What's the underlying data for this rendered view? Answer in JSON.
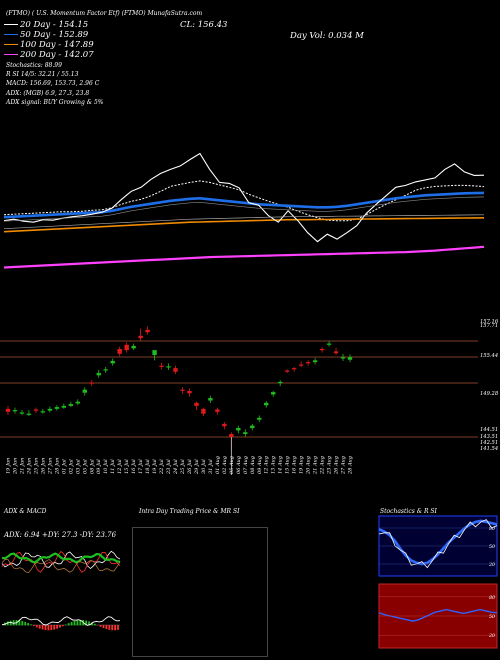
{
  "header": {
    "title_line": "MunafaSutra.com",
    "line_left": "(FTMO) ( U.S. Momentum Factor Etf) (FTMO) MunafaSutra.com",
    "ma_labels": [
      "20  Day - 154.15",
      "50  Day - 152.89",
      "100  Day - 147.89",
      "200  Day - 142.07"
    ],
    "cl_text": "CL: 156.43",
    "day_vol_text": "Day Vol: 0.034  M",
    "stochastic": "Stochastics: 88.99",
    "si": "R               SI 14/5: 32.21 / 55.13",
    "macd": "MACD: 156.69, 153.73, 2.96  C",
    "adx": "ADX:                                                (MGB) 6.9, 27.3, 23.8",
    "adx_signal": "ADX  signal:                                         BUY Growing  & 5%"
  },
  "colors": {
    "ma20": "#ffffff",
    "ma50": "#1e6ee8",
    "ma100": "#f08a00",
    "ma200": "#ff40ff",
    "bull": "#1fbe1f",
    "bear": "#e01a1a",
    "axis": "#aa5533"
  },
  "candles": {
    "price_labels": [
      "157.16",
      "157.71",
      "155.44",
      "149.28",
      "144.51",
      "143.51",
      "142.51",
      "141.54"
    ],
    "dates": [
      "19 Jun",
      "20 Jun",
      "21 Jun",
      "24 Jun",
      "25 Jun",
      "26 Jun",
      "27 Jun",
      "28 Jun",
      "01 Jul",
      "02 Jul",
      "03 Jul",
      "05 Jul",
      "08 Jul",
      "09 Jul",
      "10 Jul",
      "11 Jul",
      "12 Jul",
      "15 Jul",
      "16 Jul",
      "17 Jul",
      "18 Jul",
      "19 Jul",
      "22 Jul",
      "23 Jul",
      "24 Jul",
      "25 Jul",
      "26 Jul",
      "29 Jul",
      "30 Jul",
      "31 Jul",
      "01 Aug",
      "02 Aug",
      "05 Aug",
      "06 Aug",
      "07 Aug",
      "08 Aug",
      "09 Aug",
      "12 Aug",
      "13 Aug",
      "14 Aug",
      "15 Aug",
      "16 Aug",
      "19 Aug",
      "20 Aug",
      "21 Aug",
      "22 Aug",
      "23 Aug",
      "26 Aug",
      "27 Aug",
      "28 Aug"
    ]
  },
  "panels": {
    "adx_title": "ADX  & MACD",
    "adx_values": "ADX: 6.94  +DY: 27.3  -DY: 23.76",
    "intraday_title": "Intra Day Trading Price  & MR                   SI",
    "stoch_title": "Stochastics & R                   SI",
    "stoch_ticks": [
      "80",
      "50",
      "20"
    ],
    "rsi_ticks": [
      "80",
      "50",
      "20"
    ]
  },
  "chart_data": [
    {
      "type": "line",
      "title": "MunafaSutra.com",
      "series": [
        {
          "name": "20 Day",
          "values": [
            148.5,
            148.6,
            148.7,
            148.8,
            148.9,
            149.0,
            149.1,
            149.1,
            149.2,
            149.4,
            149.5,
            149.9,
            150.6,
            151.2,
            151.6,
            152.3,
            153.2,
            154.2,
            154.6,
            155.0,
            155.3,
            155.0,
            154.5,
            154.0,
            153.5,
            152.6,
            151.9,
            151.2,
            150.6,
            150.0,
            149.2,
            148.5,
            147.9,
            147.4,
            147.3,
            147.3,
            147.6,
            148.5,
            149.6,
            150.6,
            151.5,
            152.4,
            153.4,
            153.9,
            154.2,
            154.3,
            154.4,
            154.4,
            154.3,
            154.15
          ]
        },
        {
          "name": "50 Day",
          "values": [
            148.0,
            148.1,
            148.2,
            148.3,
            148.4,
            148.5,
            148.6,
            148.7,
            148.8,
            148.9,
            149.0,
            149.3,
            149.7,
            150.1,
            150.4,
            150.7,
            151.0,
            151.3,
            151.5,
            151.7,
            151.8,
            151.6,
            151.4,
            151.2,
            151.0,
            150.8,
            150.6,
            150.5,
            150.4,
            150.3,
            150.2,
            150.1,
            150.0,
            150.0,
            150.1,
            150.3,
            150.6,
            150.9,
            151.2,
            151.5,
            151.8,
            152.0,
            152.2,
            152.4,
            152.5,
            152.6,
            152.7,
            152.8,
            152.85,
            152.89
          ]
        },
        {
          "name": "100 Day",
          "values": [
            145.1,
            145.2,
            145.3,
            145.4,
            145.5,
            145.6,
            145.7,
            145.8,
            145.9,
            146.0,
            146.1,
            146.2,
            146.3,
            146.4,
            146.5,
            146.6,
            146.7,
            146.8,
            146.9,
            147.0,
            147.05,
            147.1,
            147.15,
            147.2,
            147.25,
            147.3,
            147.35,
            147.4,
            147.45,
            147.5,
            147.5,
            147.5,
            147.55,
            147.55,
            147.6,
            147.6,
            147.62,
            147.64,
            147.66,
            147.68,
            147.7,
            147.72,
            147.74,
            147.76,
            147.78,
            147.8,
            147.82,
            147.84,
            147.86,
            147.89
          ]
        },
        {
          "name": "200 Day",
          "values": [
            137.9,
            138.0,
            138.1,
            138.2,
            138.3,
            138.4,
            138.5,
            138.6,
            138.7,
            138.8,
            138.9,
            139.0,
            139.1,
            139.2,
            139.3,
            139.4,
            139.5,
            139.6,
            139.7,
            139.8,
            139.9,
            140.0,
            140.05,
            140.1,
            140.15,
            140.2,
            140.25,
            140.3,
            140.35,
            140.4,
            140.45,
            140.5,
            140.55,
            140.6,
            140.65,
            140.7,
            140.75,
            140.8,
            140.85,
            140.9,
            140.95,
            141.0,
            141.1,
            141.2,
            141.3,
            141.45,
            141.6,
            141.75,
            141.9,
            142.07
          ]
        },
        {
          "name": "CL",
          "values": [
            147.3,
            147.6,
            147.2,
            147.0,
            147.5,
            147.4,
            147.8,
            148.1,
            148.3,
            148.6,
            149.0,
            149.8,
            151.6,
            153.2,
            154.0,
            155.6,
            156.8,
            157.6,
            158.3,
            159.6,
            160.8,
            157.6,
            155.0,
            154.8,
            153.9,
            150.9,
            150.4,
            148.3,
            147.0,
            149.3,
            147.3,
            144.9,
            143.1,
            144.6,
            143.6,
            144.9,
            146.3,
            148.8,
            150.6,
            152.3,
            154.0,
            154.4,
            155.1,
            155.5,
            155.9,
            157.6,
            158.7,
            157.1,
            156.4,
            156.43
          ]
        }
      ]
    },
    {
      "type": "candlestick",
      "title": "MunafaSutra.com",
      "x": [
        "19 Jun",
        "20 Jun",
        "21 Jun",
        "24 Jun",
        "25 Jun",
        "26 Jun",
        "27 Jun",
        "28 Jun",
        "01 Jul",
        "02 Jul",
        "03 Jul",
        "05 Jul",
        "08 Jul",
        "09 Jul",
        "10 Jul",
        "11 Jul",
        "12 Jul",
        "15 Jul",
        "16 Jul",
        "17 Jul",
        "18 Jul",
        "19 Jul",
        "22 Jul",
        "23 Jul",
        "24 Jul",
        "25 Jul",
        "26 Jul",
        "29 Jul",
        "30 Jul",
        "31 Jul",
        "01 Aug",
        "02 Aug",
        "05 Aug",
        "06 Aug",
        "07 Aug",
        "08 Aug",
        "09 Aug",
        "12 Aug",
        "13 Aug",
        "14 Aug",
        "15 Aug",
        "16 Aug",
        "19 Aug",
        "20 Aug",
        "21 Aug",
        "22 Aug",
        "23 Aug",
        "26 Aug",
        "27 Aug",
        "28 Aug"
      ],
      "open": [
        147.8,
        147.4,
        147.2,
        147.0,
        147.7,
        147.2,
        147.5,
        147.8,
        148.0,
        148.3,
        148.7,
        150.5,
        152.2,
        153.4,
        154.2,
        155.4,
        157.8,
        158.5,
        157.9,
        160.0,
        161.0,
        156.8,
        155.0,
        154.8,
        154.6,
        151.0,
        150.8,
        148.8,
        147.8,
        149.2,
        147.7,
        145.3,
        143.6,
        144.2,
        143.6,
        144.6,
        146.0,
        148.4,
        150.2,
        152.1,
        154.2,
        154.6,
        155.2,
        155.6,
        155.6,
        157.8,
        158.5,
        157.4,
        156.3,
        156.0
      ],
      "close": [
        147.3,
        147.6,
        147.2,
        147.0,
        147.5,
        147.4,
        147.8,
        148.1,
        148.3,
        148.6,
        149.0,
        151.0,
        152.0,
        153.8,
        154.4,
        155.8,
        157.0,
        157.6,
        158.3,
        159.6,
        160.6,
        157.6,
        154.8,
        154.9,
        154.0,
        150.9,
        150.4,
        148.3,
        147.0,
        149.6,
        147.3,
        144.9,
        143.1,
        144.6,
        143.9,
        145.0,
        146.3,
        148.8,
        150.6,
        152.3,
        154.0,
        154.4,
        155.1,
        155.5,
        155.9,
        157.6,
        158.7,
        157.1,
        156.4,
        156.43
      ],
      "high": [
        148.3,
        148.0,
        147.6,
        147.6,
        148.0,
        147.8,
        148.2,
        148.4,
        148.7,
        149.0,
        149.4,
        151.4,
        152.6,
        154.3,
        154.8,
        156.2,
        158.2,
        158.9,
        158.7,
        161.2,
        161.6,
        157.4,
        155.5,
        155.4,
        155.0,
        151.4,
        151.2,
        149.0,
        148.0,
        150.0,
        148.0,
        145.6,
        143.9,
        145.0,
        144.4,
        145.3,
        146.7,
        149.1,
        150.8,
        152.6,
        154.4,
        154.8,
        155.7,
        155.9,
        156.3,
        158.1,
        159.1,
        158.0,
        157.0,
        156.9
      ],
      "low": [
        146.8,
        147.0,
        146.8,
        146.6,
        147.1,
        147.0,
        147.2,
        147.5,
        147.8,
        148.1,
        148.4,
        150.0,
        151.6,
        153.0,
        153.8,
        155.0,
        156.6,
        157.2,
        157.6,
        159.2,
        160.2,
        155.9,
        154.4,
        154.3,
        153.6,
        150.3,
        149.8,
        147.6,
        146.6,
        148.8,
        146.8,
        144.4,
        140.8,
        143.7,
        143.2,
        144.2,
        145.6,
        148.0,
        149.8,
        151.6,
        153.8,
        154.0,
        154.8,
        155.0,
        155.2,
        157.2,
        158.2,
        156.8,
        155.8,
        155.6
      ]
    }
  ]
}
